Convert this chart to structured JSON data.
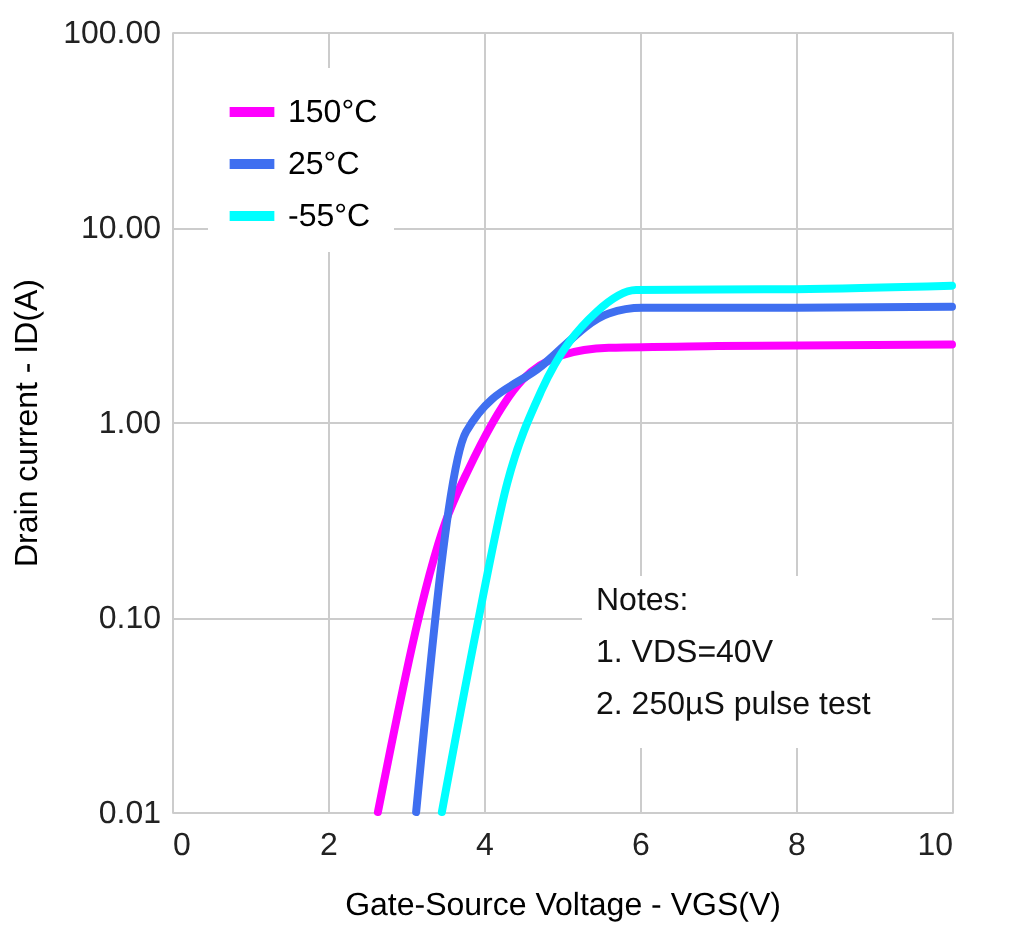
{
  "chart_data": {
    "type": "line",
    "xlabel": "Gate-Source Voltage - VGS(V)",
    "ylabel": "Drain current - ID(A)",
    "xlim": [
      0,
      10
    ],
    "xticks": [
      0,
      2,
      4,
      6,
      8,
      10
    ],
    "ylim": [
      0.01,
      100
    ],
    "yticks": [
      {
        "value": 0.01,
        "label": "0.01"
      },
      {
        "value": 0.1,
        "label": "0.10"
      },
      {
        "value": 1,
        "label": "1.00"
      },
      {
        "value": 10,
        "label": "10.00"
      },
      {
        "value": 100,
        "label": "100.00"
      }
    ],
    "log": "y",
    "grid": true,
    "legend": "top left",
    "line_style": "solid",
    "marker": "none",
    "series": [
      {
        "name": "150°C",
        "color": "#ff00ff",
        "x": [
          2.64,
          3.51,
          3.8,
          4.49,
          5.0,
          5.6,
          7.0,
          10
        ],
        "values": [
          0.01,
          0.31,
          0.57,
          1.64,
          2.2,
          2.4,
          2.45,
          2.5
        ]
      },
      {
        "name": "25°C",
        "color": "#3f6ff0",
        "x": [
          3.13,
          3.77,
          4.74,
          5.6,
          6.03,
          8.0,
          10
        ],
        "values": [
          0.01,
          0.89,
          1.94,
          3.6,
          3.85,
          3.85,
          3.9
        ]
      },
      {
        "name": "-55°C",
        "color": "#00ffff",
        "x": [
          3.46,
          3.9,
          4.3,
          4.74,
          5.44,
          5.95,
          8.0,
          10
        ],
        "values": [
          0.01,
          0.085,
          0.49,
          1.46,
          3.66,
          4.75,
          4.8,
          5.0
        ]
      }
    ],
    "annotations": [
      "Notes:",
      "1. VDS=40V",
      "2. 250µS pulse test"
    ]
  }
}
